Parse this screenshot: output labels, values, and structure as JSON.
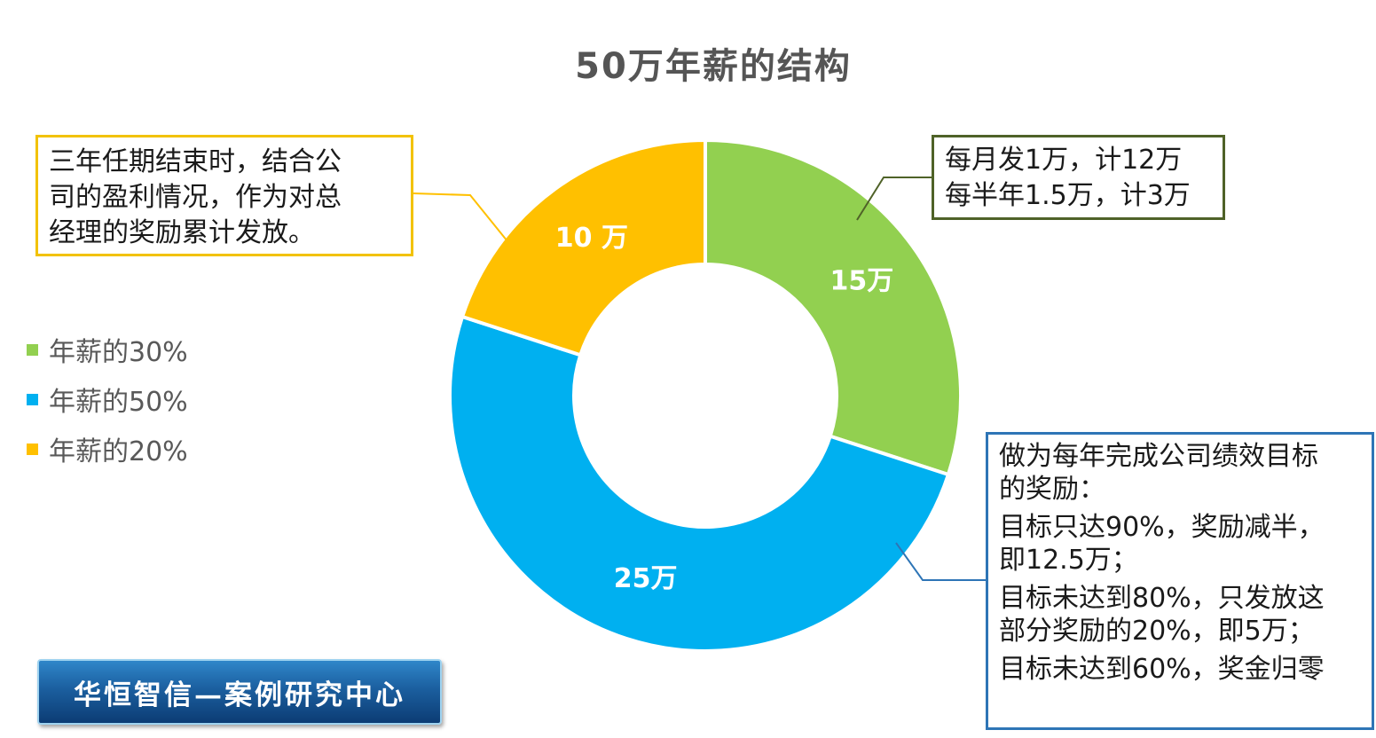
{
  "chart_data": {
    "type": "pie",
    "donut": true,
    "title": "50万年薪的结构",
    "slices": [
      {
        "label": "年薪的30%",
        "value": 15,
        "data_label": "15万",
        "color": "#92d050"
      },
      {
        "label": "年薪的50%",
        "value": 25,
        "data_label": "25万",
        "color": "#00b0f0"
      },
      {
        "label": "年薪的20%",
        "value": 10,
        "data_label": "10 万",
        "color": "#ffc000"
      }
    ],
    "legend": {
      "placement": "left",
      "entries": [
        "年薪的30%",
        "年薪的50%",
        "年薪的20%"
      ]
    }
  },
  "callouts": {
    "left": {
      "lines": [
        "三年任期结束时，结合公",
        "司的盈利情况，作为对总",
        "经理的奖励累计发放。"
      ],
      "border_color": "#f2c200"
    },
    "top_right": {
      "lines": [
        "每月发1万，计12万",
        "每半年1.5万，计3万"
      ],
      "border_color": "#4f6228"
    },
    "bottom_right": {
      "paragraphs": [
        [
          "做为每年完成公司绩效目标",
          "的奖励："
        ],
        [
          "目标只达90%，奖励减半，",
          "即12.5万；"
        ],
        [
          "目标未达到80%，只发放这",
          "部分奖励的20%，即5万；"
        ],
        [
          "目标未达到60%，奖金归零"
        ]
      ],
      "border_color": "#2e75b6"
    }
  },
  "brand": {
    "label": "华恒智信—案例研究中心"
  }
}
